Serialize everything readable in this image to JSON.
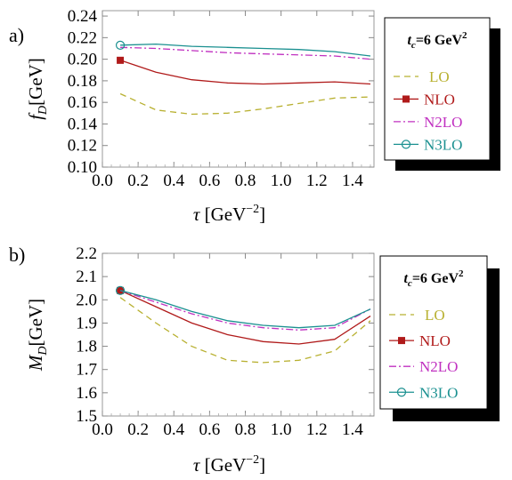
{
  "chart_data": [
    {
      "type": "line",
      "panel_label": "a)",
      "ylabel_main": "f",
      "ylabel_sub": "D",
      "ylabel_unit": "[GeV]",
      "xlabel_main": "τ",
      "xlabel_unit": "[GeV",
      "xlabel_exp": "−2",
      "xlabel_close": "]",
      "xlim": [
        0,
        1.52
      ],
      "ylim": [
        0.1,
        0.245
      ],
      "xticks": [
        "0.0",
        "0.2",
        "0.4",
        "0.6",
        "0.8",
        "1.0",
        "1.2",
        "1.4"
      ],
      "yticks": [
        "0.10",
        "0.12",
        "0.14",
        "0.16",
        "0.18",
        "0.20",
        "0.22",
        "0.24"
      ],
      "legend": {
        "title_t": "t",
        "title_sub": "c",
        "title_rest": "=6 GeV",
        "title_exp": "2",
        "placement": "right"
      },
      "series": [
        {
          "name": "LO",
          "color": "#b8b030",
          "dash": "7,5",
          "marker": "none",
          "x": [
            0.1,
            0.3,
            0.5,
            0.7,
            0.9,
            1.1,
            1.3,
            1.5
          ],
          "y": [
            0.168,
            0.153,
            0.149,
            0.15,
            0.154,
            0.159,
            0.164,
            0.165
          ]
        },
        {
          "name": "NLO",
          "color": "#b01a1a",
          "dash": "",
          "marker": "square",
          "x": [
            0.1,
            0.3,
            0.5,
            0.7,
            0.9,
            1.1,
            1.3,
            1.5
          ],
          "y": [
            0.199,
            0.188,
            0.181,
            0.178,
            0.177,
            0.178,
            0.179,
            0.177
          ]
        },
        {
          "name": "N2LO",
          "color": "#c030c0",
          "dash": "8,3,2,3",
          "marker": "none",
          "x": [
            0.1,
            0.3,
            0.5,
            0.7,
            0.9,
            1.1,
            1.3,
            1.5
          ],
          "y": [
            0.211,
            0.21,
            0.208,
            0.206,
            0.205,
            0.204,
            0.203,
            0.2
          ]
        },
        {
          "name": "N3LO",
          "color": "#1a9090",
          "dash": "",
          "marker": "circle",
          "x": [
            0.1,
            0.3,
            0.5,
            0.7,
            0.9,
            1.1,
            1.3,
            1.5
          ],
          "y": [
            0.213,
            0.214,
            0.212,
            0.211,
            0.21,
            0.209,
            0.207,
            0.203
          ]
        }
      ]
    },
    {
      "type": "line",
      "panel_label": "b)",
      "ylabel_main": "M",
      "ylabel_sub": "D",
      "ylabel_unit": "[GeV]",
      "xlabel_main": "τ",
      "xlabel_unit": "[GeV",
      "xlabel_exp": "−2",
      "xlabel_close": "]",
      "xlim": [
        0,
        1.52
      ],
      "ylim": [
        1.5,
        2.2
      ],
      "xticks": [
        "0.0",
        "0.2",
        "0.4",
        "0.6",
        "0.8",
        "1.0",
        "1.2",
        "1.4"
      ],
      "yticks": [
        "1.5",
        "1.6",
        "1.7",
        "1.8",
        "1.9",
        "2.0",
        "2.1",
        "2.2"
      ],
      "legend": {
        "title_t": "t",
        "title_sub": "c",
        "title_rest": "=6 GeV",
        "title_exp": "2",
        "placement": "right"
      },
      "series": [
        {
          "name": "LO",
          "color": "#b8b030",
          "dash": "7,5",
          "marker": "none",
          "x": [
            0.1,
            0.3,
            0.5,
            0.7,
            0.9,
            1.1,
            1.3,
            1.5
          ],
          "y": [
            2.01,
            1.9,
            1.8,
            1.74,
            1.73,
            1.74,
            1.78,
            1.91
          ]
        },
        {
          "name": "NLO",
          "color": "#b01a1a",
          "dash": "",
          "marker": "square",
          "x": [
            0.1,
            0.3,
            0.5,
            0.7,
            0.9,
            1.1,
            1.3,
            1.5
          ],
          "y": [
            2.04,
            1.97,
            1.9,
            1.85,
            1.82,
            1.81,
            1.83,
            1.93
          ]
        },
        {
          "name": "N2LO",
          "color": "#c030c0",
          "dash": "8,3,2,3",
          "marker": "none",
          "x": [
            0.1,
            0.3,
            0.5,
            0.7,
            0.9,
            1.1,
            1.3,
            1.5
          ],
          "y": [
            2.04,
            1.99,
            1.94,
            1.9,
            1.88,
            1.87,
            1.88,
            1.96
          ]
        },
        {
          "name": "N3LO",
          "color": "#1a9090",
          "dash": "",
          "marker": "circle",
          "x": [
            0.1,
            0.3,
            0.5,
            0.7,
            0.9,
            1.1,
            1.3,
            1.5
          ],
          "y": [
            2.04,
            2.0,
            1.95,
            1.91,
            1.89,
            1.88,
            1.89,
            1.96
          ]
        }
      ]
    }
  ]
}
